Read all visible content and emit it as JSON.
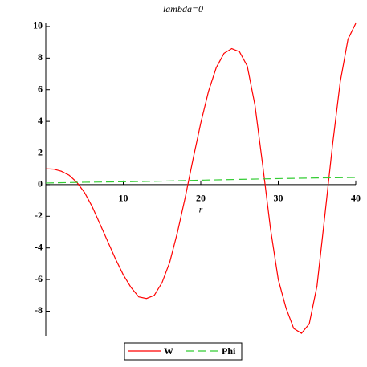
{
  "chart_data": {
    "type": "line",
    "title": "lambda=0",
    "x_label": "r",
    "xlim": [
      0,
      40
    ],
    "ylim": [
      -9.6,
      10.2
    ],
    "xticks": [
      10,
      20,
      30,
      40
    ],
    "yticks": [
      -8,
      -6,
      -4,
      -2,
      0,
      2,
      4,
      6,
      8,
      10
    ],
    "series": [
      {
        "name": "W",
        "color": "#ff0000",
        "dash": false,
        "x": [
          0,
          1,
          2,
          3,
          4,
          5,
          6,
          7,
          8,
          9,
          10,
          11,
          12,
          13,
          14,
          15,
          16,
          17,
          18,
          19,
          20,
          21,
          22,
          23,
          24,
          25,
          26,
          27,
          28,
          29,
          30,
          31,
          32,
          33,
          34,
          35,
          36,
          37,
          38,
          39,
          40
        ],
        "values": [
          1.0,
          0.98,
          0.85,
          0.6,
          0.15,
          -0.5,
          -1.4,
          -2.5,
          -3.6,
          -4.7,
          -5.7,
          -6.5,
          -7.1,
          -7.2,
          -7.0,
          -6.2,
          -4.9,
          -3.0,
          -0.8,
          1.6,
          3.9,
          5.9,
          7.4,
          8.3,
          8.6,
          8.4,
          7.5,
          5.0,
          1.2,
          -2.8,
          -6.0,
          -7.8,
          -9.1,
          -9.4,
          -8.8,
          -6.4,
          -2.0,
          2.5,
          6.5,
          9.2,
          10.2
        ]
      },
      {
        "name": "Phi",
        "color": "#33cc33",
        "dash": true,
        "x": [
          0,
          5,
          10,
          15,
          20,
          25,
          30,
          35,
          40
        ],
        "values": [
          0.1,
          0.15,
          0.18,
          0.22,
          0.28,
          0.33,
          0.38,
          0.42,
          0.45
        ]
      }
    ]
  }
}
